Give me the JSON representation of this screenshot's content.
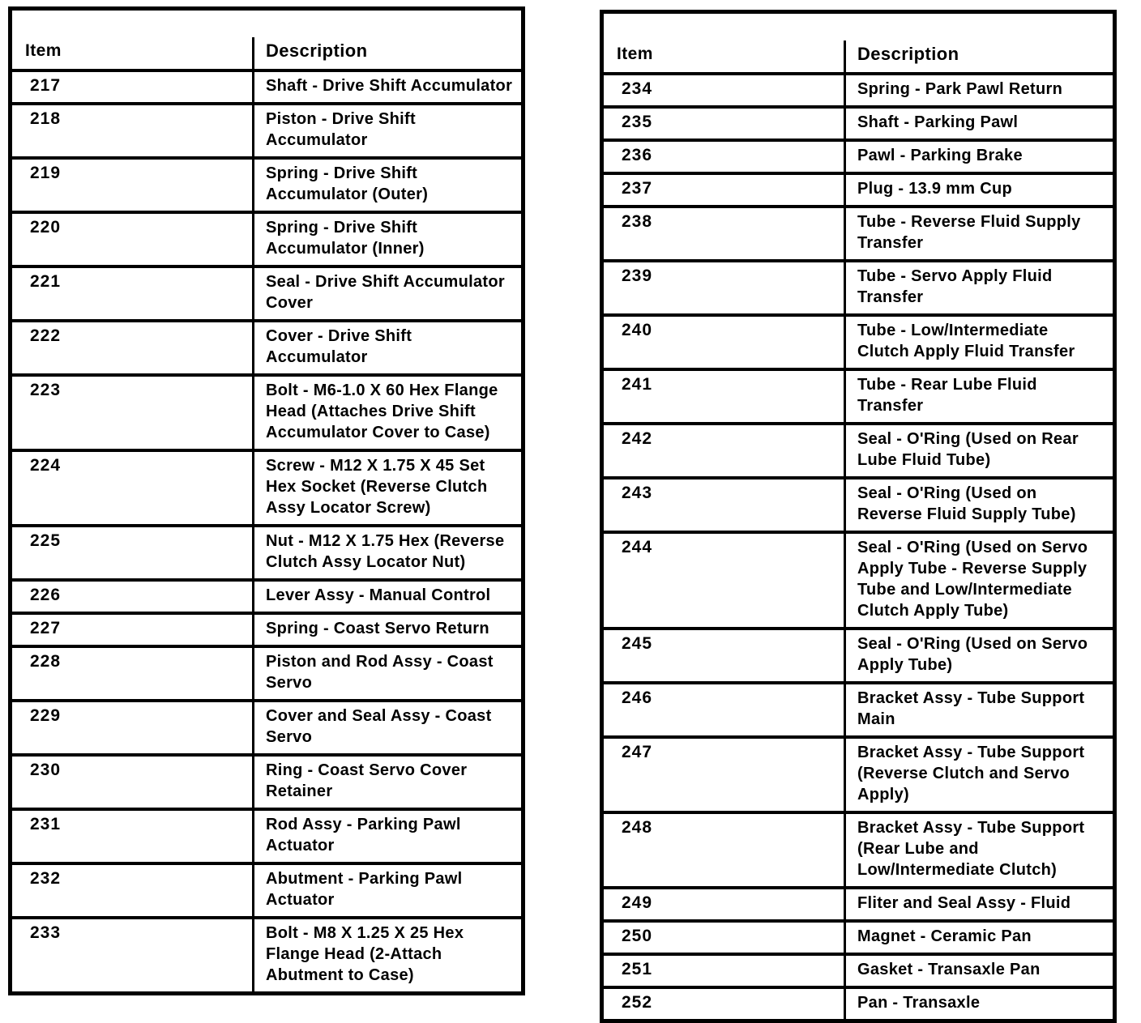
{
  "page": {
    "background_color": "#ffffff",
    "text_color": "#000000",
    "kind": "scanned parts list"
  },
  "tables": [
    {
      "id": "left",
      "headers": {
        "item": "Item",
        "description": "Description"
      },
      "rows": [
        {
          "item": "217",
          "description": "Shaft - Drive Shift Accumulator"
        },
        {
          "item": "218",
          "description": "Piston - Drive Shift Accumulator"
        },
        {
          "item": "219",
          "description": "Spring - Drive Shift Accumulator (Outer)"
        },
        {
          "item": "220",
          "description": "Spring - Drive Shift Accumulator (Inner)"
        },
        {
          "item": "221",
          "description": "Seal - Drive Shift Accumulator Cover"
        },
        {
          "item": "222",
          "description": "Cover - Drive Shift Accumulator"
        },
        {
          "item": "223",
          "description": "Bolt - M6-1.0 X 60 Hex Flange Head (Attaches Drive Shift Accumulator Cover to Case)"
        },
        {
          "item": "224",
          "description": "Screw - M12 X 1.75 X 45 Set Hex Socket (Reverse Clutch Assy Locator Screw)"
        },
        {
          "item": "225",
          "description": "Nut - M12 X 1.75 Hex (Reverse Clutch Assy Locator Nut)"
        },
        {
          "item": "226",
          "description": "Lever Assy - Manual Control"
        },
        {
          "item": "227",
          "description": "Spring - Coast Servo Return"
        },
        {
          "item": "228",
          "description": "Piston and Rod Assy - Coast Servo"
        },
        {
          "item": "229",
          "description": "Cover and Seal Assy - Coast Servo"
        },
        {
          "item": "230",
          "description": "Ring - Coast Servo Cover Retainer"
        },
        {
          "item": "231",
          "description": "Rod Assy - Parking Pawl Actuator"
        },
        {
          "item": "232",
          "description": "Abutment - Parking Pawl Actuator"
        },
        {
          "item": "233",
          "description": "Bolt - M8 X 1.25 X 25 Hex Flange Head (2-Attach Abutment to Case)"
        }
      ]
    },
    {
      "id": "right",
      "headers": {
        "item": "Item",
        "description": "Description"
      },
      "rows": [
        {
          "item": "234",
          "description": "Spring - Park Pawl Return"
        },
        {
          "item": "235",
          "description": "Shaft - Parking Pawl"
        },
        {
          "item": "236",
          "description": "Pawl - Parking Brake"
        },
        {
          "item": "237",
          "description": "Plug - 13.9 mm Cup"
        },
        {
          "item": "238",
          "description": "Tube - Reverse Fluid Supply Transfer"
        },
        {
          "item": "239",
          "description": "Tube - Servo Apply Fluid Transfer"
        },
        {
          "item": "240",
          "description": "Tube - Low/Intermediate Clutch Apply Fluid Transfer"
        },
        {
          "item": "241",
          "description": "Tube - Rear Lube Fluid Transfer"
        },
        {
          "item": "242",
          "description": "Seal - O'Ring (Used on Rear Lube Fluid Tube)"
        },
        {
          "item": "243",
          "description": "Seal - O'Ring (Used on Reverse Fluid Supply Tube)"
        },
        {
          "item": "244",
          "description": "Seal - O'Ring (Used on Servo Apply Tube - Reverse Supply Tube and Low/Intermediate Clutch Apply Tube)"
        },
        {
          "item": "245",
          "description": "Seal - O'Ring (Used on Servo Apply Tube)"
        },
        {
          "item": "246",
          "description": "Bracket Assy - Tube Support Main"
        },
        {
          "item": "247",
          "description": "Bracket Assy - Tube Support (Reverse Clutch and Servo Apply)"
        },
        {
          "item": "248",
          "description": "Bracket Assy - Tube Support (Rear Lube and Low/Intermediate Clutch)"
        },
        {
          "item": "249",
          "description": "Fliter and Seal Assy - Fluid"
        },
        {
          "item": "250",
          "description": "Magnet - Ceramic Pan"
        },
        {
          "item": "251",
          "description": "Gasket - Transaxle Pan"
        },
        {
          "item": "252",
          "description": "Pan - Transaxle"
        }
      ]
    }
  ]
}
